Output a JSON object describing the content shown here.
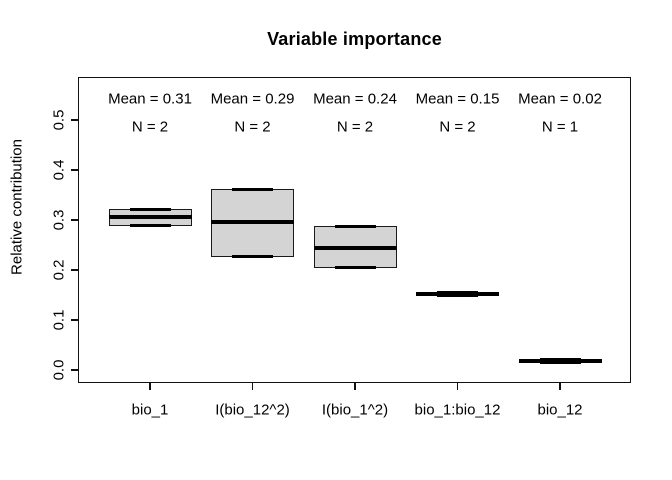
{
  "title": "Variable importance",
  "y_axis": {
    "label": "Relative contribution",
    "tick_labels": [
      "0.0",
      "0.1",
      "0.2",
      "0.3",
      "0.4",
      "0.5"
    ],
    "tick_values": [
      0.0,
      0.1,
      0.2,
      0.3,
      0.4,
      0.5
    ]
  },
  "colors": {
    "box_fill": "#d4d4d4",
    "box_border": "#1a1a1a",
    "line": "#000000",
    "background": "#ffffff"
  },
  "chart_data": {
    "type": "boxplot",
    "title": "Variable importance",
    "ylabel": "Relative contribution",
    "ylim": [
      0.0,
      0.575
    ],
    "grid": false,
    "categories": [
      "bio_1",
      "I(bio_12^2)",
      "I(bio_1^2)",
      "bio_1:bio_12",
      "bio_12"
    ],
    "series": [
      {
        "category": "bio_1",
        "mean": 0.31,
        "n": 2,
        "min": 0.288,
        "median": 0.306,
        "max": 0.322,
        "mean_label": "Mean = 0.31",
        "n_label": "N = 2"
      },
      {
        "category": "I(bio_12^2)",
        "mean": 0.29,
        "n": 2,
        "min": 0.226,
        "median": 0.296,
        "max": 0.362,
        "mean_label": "Mean = 0.29",
        "n_label": "N = 2"
      },
      {
        "category": "I(bio_1^2)",
        "mean": 0.24,
        "n": 2,
        "min": 0.204,
        "median": 0.244,
        "max": 0.288,
        "mean_label": "Mean = 0.24",
        "n_label": "N = 2"
      },
      {
        "category": "bio_1:bio_12",
        "mean": 0.15,
        "n": 2,
        "min": 0.148,
        "median": 0.152,
        "max": 0.156,
        "mean_label": "Mean = 0.15",
        "n_label": "N = 2"
      },
      {
        "category": "bio_12",
        "mean": 0.02,
        "n": 1,
        "min": 0.014,
        "median": 0.018,
        "max": 0.022,
        "mean_label": "Mean = 0.02",
        "n_label": "N = 1"
      }
    ]
  }
}
